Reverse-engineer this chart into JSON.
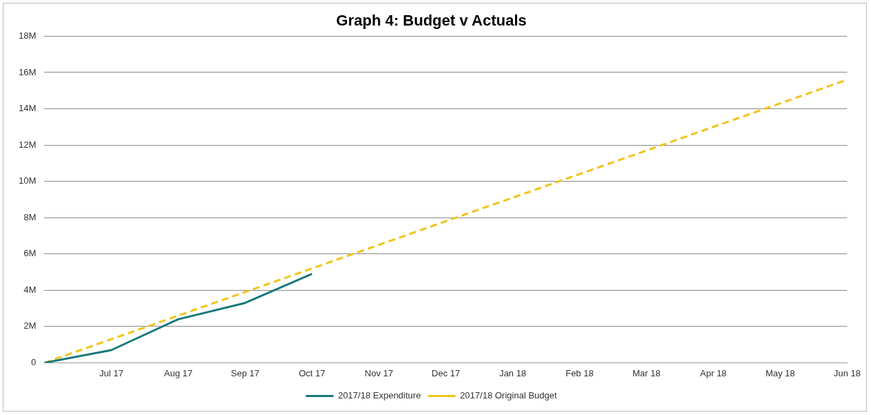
{
  "chart_data": {
    "type": "line",
    "title": "Graph 4: Budget v Actuals",
    "categories": [
      null,
      "Jul 17",
      "Aug 17",
      "Sep 17",
      "Oct 17",
      "Nov 17",
      "Dec 17",
      "Jan 18",
      "Feb 18",
      "Mar 18",
      "Apr 18",
      "May 18",
      "Jun 18"
    ],
    "series": [
      {
        "name": "2017/18 Expenditure",
        "color": "#16787a",
        "line_style": "solid",
        "values": [
          0,
          0.7,
          2.4,
          3.3,
          4.9,
          null,
          null,
          null,
          null,
          null,
          null,
          null,
          null
        ]
      },
      {
        "name": "2017/18 Original Budget",
        "color": "#f0c419",
        "line_style": "dashed",
        "values": [
          0,
          1.3,
          2.6,
          3.9,
          5.2,
          6.5,
          7.8,
          9.1,
          10.4,
          11.7,
          13.0,
          14.3,
          15.6
        ]
      }
    ],
    "ylim": [
      0,
      18
    ],
    "yticks": [
      0,
      {
        "value": 2,
        "label": "2M"
      },
      {
        "value": 4,
        "label": "4M"
      },
      {
        "value": 6,
        "label": "6M"
      },
      {
        "value": 8,
        "label": "8M"
      },
      {
        "value": 10,
        "label": "10M"
      },
      {
        "value": 12,
        "label": "12M"
      },
      {
        "value": 14,
        "label": "14M"
      },
      {
        "value": 16,
        "label": "16M"
      },
      {
        "value": 18,
        "label": "18M"
      }
    ],
    "grid": "y",
    "legend": "bottom",
    "marker": "none"
  }
}
